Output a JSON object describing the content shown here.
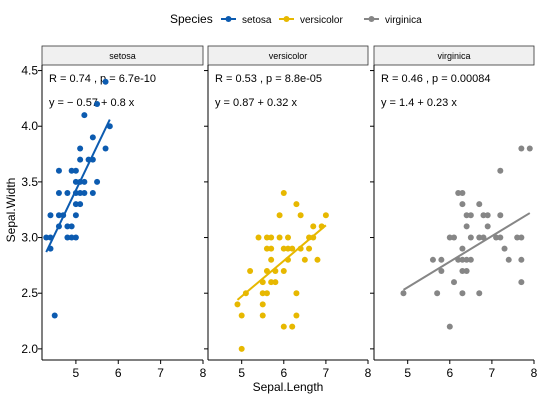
{
  "chart_data": {
    "type": "scatter",
    "facet_by": "Species",
    "xlabel": "Sepal.Length",
    "ylabel": "Sepal.Width",
    "xlim": [
      4.2,
      8.0
    ],
    "ylim": [
      1.9,
      4.55
    ],
    "x_ticks": [
      5,
      6,
      7,
      8
    ],
    "y_ticks": [
      2.0,
      2.5,
      3.0,
      3.5,
      4.0,
      4.5
    ],
    "y_tick_labels": [
      "2.0",
      "2.5",
      "3.0",
      "3.5",
      "4.0",
      "4.5"
    ],
    "legend": {
      "title": "Species",
      "position": "top",
      "entries": [
        "setosa",
        "versicolor",
        "virginica"
      ]
    },
    "grid": false,
    "series": [
      {
        "name": "setosa",
        "color": "#0C5BB0",
        "regression_line": {
          "x0": 4.3,
          "y0": 2.87,
          "x1": 5.8,
          "y1": 4.06
        },
        "annotation_r": "R = 0.74 , p = 6.7e-10",
        "annotation_eq": "y = − 0.57 + 0.8 x",
        "points": [
          [
            4.3,
            3.0
          ],
          [
            4.4,
            2.9
          ],
          [
            4.4,
            3.0
          ],
          [
            4.4,
            3.2
          ],
          [
            4.5,
            2.3
          ],
          [
            4.6,
            3.1
          ],
          [
            4.6,
            3.4
          ],
          [
            4.6,
            3.6
          ],
          [
            4.6,
            3.2
          ],
          [
            4.7,
            3.2
          ],
          [
            4.8,
            3.0
          ],
          [
            4.8,
            3.4
          ],
          [
            4.8,
            3.1
          ],
          [
            4.9,
            3.0
          ],
          [
            4.9,
            3.1
          ],
          [
            4.9,
            3.6
          ],
          [
            5.0,
            3.6
          ],
          [
            5.0,
            3.4
          ],
          [
            5.0,
            3.0
          ],
          [
            5.0,
            3.3
          ],
          [
            5.0,
            3.5
          ],
          [
            5.0,
            3.2
          ],
          [
            5.1,
            3.5
          ],
          [
            5.1,
            3.8
          ],
          [
            5.1,
            3.7
          ],
          [
            5.1,
            3.3
          ],
          [
            5.1,
            3.4
          ],
          [
            5.2,
            3.5
          ],
          [
            5.2,
            3.4
          ],
          [
            5.2,
            4.1
          ],
          [
            5.3,
            3.7
          ],
          [
            5.4,
            3.9
          ],
          [
            5.4,
            3.7
          ],
          [
            5.4,
            3.4
          ],
          [
            5.5,
            4.2
          ],
          [
            5.5,
            3.5
          ],
          [
            5.7,
            4.4
          ],
          [
            5.7,
            3.8
          ],
          [
            5.8,
            4.0
          ]
        ]
      },
      {
        "name": "versicolor",
        "color": "#E7B800",
        "regression_line": {
          "x0": 4.9,
          "y0": 2.44,
          "x1": 7.0,
          "y1": 3.11
        },
        "annotation_r": "R = 0.53 , p = 8.8e-05",
        "annotation_eq": "y = 0.87 + 0.32 x",
        "points": [
          [
            4.9,
            2.4
          ],
          [
            5.0,
            2.0
          ],
          [
            5.0,
            2.3
          ],
          [
            5.1,
            2.5
          ],
          [
            5.2,
            2.7
          ],
          [
            5.4,
            3.0
          ],
          [
            5.5,
            2.3
          ],
          [
            5.5,
            2.4
          ],
          [
            5.5,
            2.5
          ],
          [
            5.5,
            2.6
          ],
          [
            5.6,
            2.9
          ],
          [
            5.6,
            3.0
          ],
          [
            5.6,
            2.5
          ],
          [
            5.6,
            2.7
          ],
          [
            5.7,
            2.8
          ],
          [
            5.7,
            2.6
          ],
          [
            5.7,
            3.0
          ],
          [
            5.7,
            2.9
          ],
          [
            5.8,
            2.7
          ],
          [
            5.8,
            2.6
          ],
          [
            5.9,
            3.0
          ],
          [
            5.9,
            3.2
          ],
          [
            6.0,
            2.2
          ],
          [
            6.0,
            2.9
          ],
          [
            6.0,
            2.7
          ],
          [
            6.0,
            3.4
          ],
          [
            6.1,
            2.9
          ],
          [
            6.1,
            2.8
          ],
          [
            6.1,
            3.0
          ],
          [
            6.2,
            2.2
          ],
          [
            6.2,
            2.9
          ],
          [
            6.3,
            3.3
          ],
          [
            6.3,
            2.5
          ],
          [
            6.3,
            2.3
          ],
          [
            6.4,
            3.2
          ],
          [
            6.4,
            2.9
          ],
          [
            6.5,
            2.8
          ],
          [
            6.6,
            2.9
          ],
          [
            6.6,
            3.0
          ],
          [
            6.7,
            3.1
          ],
          [
            6.7,
            3.0
          ],
          [
            6.8,
            2.8
          ],
          [
            6.9,
            3.1
          ],
          [
            7.0,
            3.2
          ]
        ]
      },
      {
        "name": "virginica",
        "color": "#868686",
        "regression_line": {
          "x0": 4.9,
          "y0": 2.53,
          "x1": 7.9,
          "y1": 3.22
        },
        "annotation_r": "R = 0.46 , p = 0.00084",
        "annotation_eq": "y = 1.4 + 0.23 x",
        "points": [
          [
            4.9,
            2.5
          ],
          [
            5.6,
            2.8
          ],
          [
            5.7,
            2.5
          ],
          [
            5.8,
            2.7
          ],
          [
            5.8,
            2.8
          ],
          [
            6.0,
            2.2
          ],
          [
            6.0,
            3.0
          ],
          [
            6.1,
            3.0
          ],
          [
            6.1,
            2.6
          ],
          [
            6.2,
            2.8
          ],
          [
            6.2,
            3.4
          ],
          [
            6.3,
            3.3
          ],
          [
            6.3,
            2.9
          ],
          [
            6.3,
            2.7
          ],
          [
            6.3,
            2.8
          ],
          [
            6.3,
            3.4
          ],
          [
            6.3,
            2.5
          ],
          [
            6.4,
            2.7
          ],
          [
            6.4,
            3.2
          ],
          [
            6.4,
            2.8
          ],
          [
            6.4,
            3.1
          ],
          [
            6.5,
            3.0
          ],
          [
            6.5,
            3.2
          ],
          [
            6.5,
            2.8
          ],
          [
            6.7,
            2.5
          ],
          [
            6.7,
            3.3
          ],
          [
            6.7,
            3.0
          ],
          [
            6.8,
            3.0
          ],
          [
            6.8,
            3.2
          ],
          [
            6.9,
            3.2
          ],
          [
            6.9,
            3.1
          ],
          [
            7.1,
            3.0
          ],
          [
            7.2,
            3.6
          ],
          [
            7.2,
            3.2
          ],
          [
            7.2,
            3.0
          ],
          [
            7.3,
            2.9
          ],
          [
            7.4,
            2.8
          ],
          [
            7.6,
            3.0
          ],
          [
            7.7,
            3.8
          ],
          [
            7.7,
            2.6
          ],
          [
            7.7,
            2.8
          ],
          [
            7.7,
            3.0
          ],
          [
            7.9,
            3.8
          ]
        ]
      }
    ]
  }
}
